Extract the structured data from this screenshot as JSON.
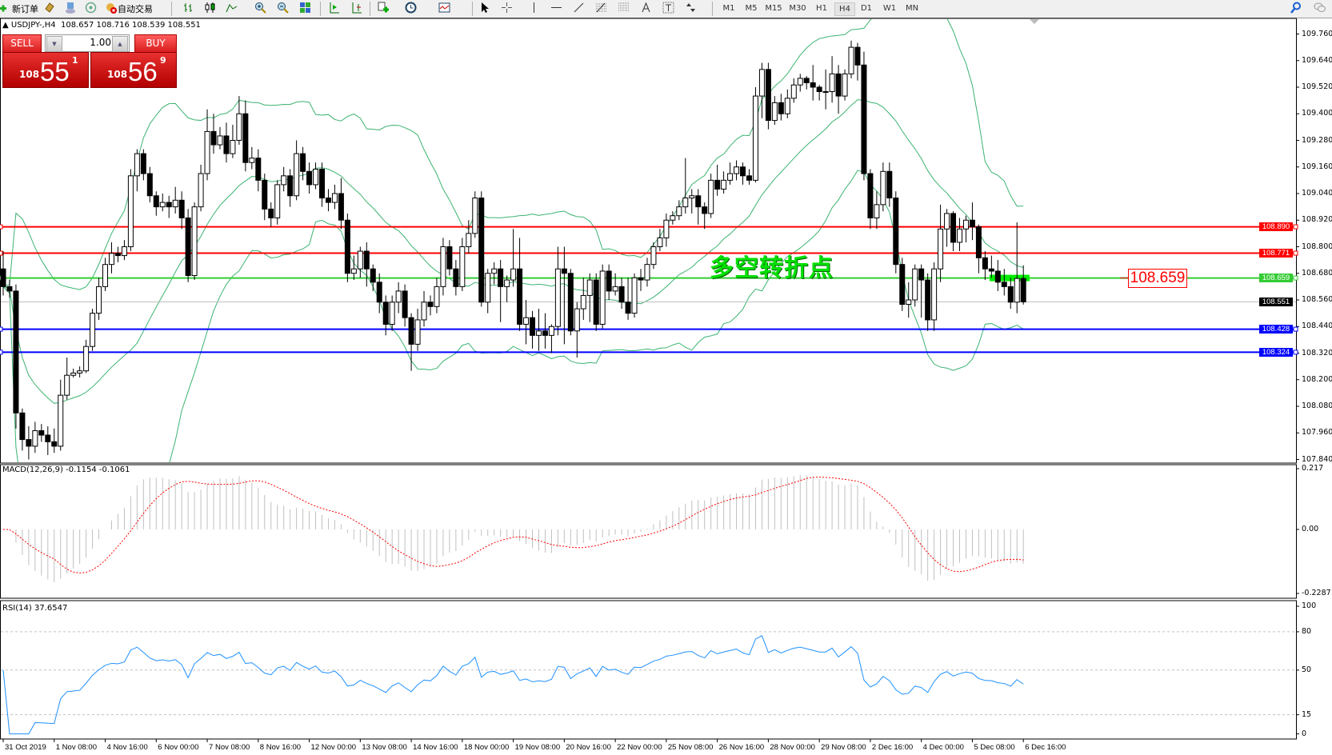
{
  "toolbar": {
    "new_order": "新订单",
    "auto_trading": "自动交易",
    "icons": [
      "new-order-icon",
      "navigator-icon",
      "market-watch-icon",
      "signals-icon",
      "auto-trading-icon",
      "bar-chart-icon",
      "candlestick-icon",
      "line-chart-icon",
      "zoom-in-icon",
      "zoom-out-icon",
      "tile-windows-icon",
      "auto-scroll-icon",
      "chart-shift-icon",
      "indicators-icon",
      "periods-icon",
      "templates-icon",
      "cursor-icon",
      "crosshair-icon",
      "vertical-line-icon",
      "horizontal-line-icon",
      "trendline-icon",
      "fibonacci-icon",
      "fibo-fan-icon",
      "text-icon",
      "text-label-icon",
      "arrows-icon",
      "search-icon",
      "chat-icon"
    ],
    "timeframes": [
      "M1",
      "M5",
      "M15",
      "M30",
      "H1",
      "H4",
      "D1",
      "W1",
      "MN"
    ],
    "active_timeframe": "H4"
  },
  "chart": {
    "header": "USDJPY-,H4  108.657 108.716 108.539 108.551",
    "annotation": "多空转折点",
    "annotation_color": "#00e000",
    "price_label": "108.659",
    "price_ticks": [
      "109.760",
      "109.640",
      "109.520",
      "109.400",
      "109.280",
      "109.160",
      "109.040",
      "108.920",
      "108.800",
      "108.680",
      "108.560",
      "108.440",
      "108.320",
      "108.200",
      "108.080",
      "107.960",
      "107.840"
    ],
    "levels": [
      {
        "price": 108.89,
        "label": "108.890",
        "color": "#ff0000"
      },
      {
        "price": 108.771,
        "label": "108.771",
        "color": "#ff0000"
      },
      {
        "price": 108.659,
        "label": "108.659",
        "color": "#33cc33"
      },
      {
        "price": 108.551,
        "label": "108.551",
        "color": "#000000",
        "line_color": "#c0c0c0"
      },
      {
        "price": 108.428,
        "label": "108.428",
        "color": "#0000ff"
      },
      {
        "price": 108.324,
        "label": "108.324",
        "color": "#0000ff"
      }
    ]
  },
  "trade_panel": {
    "sell_label": "SELL",
    "buy_label": "BUY",
    "lot": "1.00",
    "sell_price": {
      "small": "108",
      "big": "55",
      "tiny": "1"
    },
    "buy_price": {
      "small": "108",
      "big": "56",
      "tiny": "9"
    }
  },
  "macd": {
    "label": "MACD(12,26,9) -0.1154 -0.1061",
    "ticks": [
      "0.217",
      "0.00",
      "-0.2287"
    ],
    "range": [
      -0.2287,
      0.217
    ]
  },
  "rsi": {
    "label": "RSI(14) 37.6547",
    "ticks": [
      "100",
      "80",
      "50",
      "15",
      "0"
    ],
    "levels": [
      80,
      50,
      15
    ]
  },
  "time_labels": [
    "31 Oct 2019",
    "1 Nov 08:00",
    "4 Nov 16:00",
    "6 Nov 00:00",
    "7 Nov 08:00",
    "8 Nov 16:00",
    "12 Nov 00:00",
    "13 Nov 08:00",
    "14 Nov 16:00",
    "18 Nov 00:00",
    "19 Nov 08:00",
    "20 Nov 16:00",
    "22 Nov 00:00",
    "25 Nov 08:00",
    "26 Nov 16:00",
    "28 Nov 00:00",
    "29 Nov 08:00",
    "2 Dec 16:00",
    "4 Dec 00:00",
    "5 Dec 08:00",
    "6 Dec 16:00"
  ],
  "chart_data": {
    "type": "candlestick",
    "symbol": "USDJPY",
    "timeframe": "H4",
    "ylim": [
      107.84,
      109.76
    ],
    "first_open": 108.7,
    "close": [
      108.62,
      108.6,
      108.05,
      107.93,
      107.9,
      107.97,
      107.95,
      107.92,
      107.9,
      108.13,
      108.22,
      108.23,
      108.24,
      108.35,
      108.5,
      108.62,
      108.72,
      108.77,
      108.76,
      108.8,
      109.12,
      109.22,
      109.13,
      109.03,
      108.98,
      109.0,
      108.98,
      109.01,
      108.93,
      108.67,
      108.98,
      109.13,
      109.32,
      109.26,
      109.3,
      109.22,
      109.28,
      109.4,
      109.18,
      109.2,
      109.1,
      108.97,
      108.93,
      109.08,
      109.12,
      109.03,
      109.22,
      109.14,
      109.08,
      109.15,
      109.02,
      109.0,
      109.04,
      108.92,
      108.68,
      108.7,
      108.78,
      108.7,
      108.64,
      108.55,
      108.45,
      108.55,
      108.6,
      108.48,
      108.36,
      108.47,
      108.55,
      108.53,
      108.62,
      108.8,
      108.7,
      108.62,
      108.8,
      108.86,
      109.02,
      108.55,
      108.68,
      108.7,
      108.62,
      108.65,
      108.7,
      108.45,
      108.48,
      108.4,
      108.42,
      108.4,
      108.44,
      108.7,
      108.68,
      108.42,
      108.52,
      108.58,
      108.65,
      108.45,
      108.69,
      108.6,
      108.62,
      108.55,
      108.5,
      108.66,
      108.65,
      108.72,
      108.8,
      108.84,
      108.92,
      108.94,
      108.98,
      109.02,
      109.03,
      108.98,
      108.95,
      109.1,
      109.06,
      109.1,
      109.13,
      109.16,
      109.12,
      109.1,
      109.48,
      109.6,
      109.37,
      109.45,
      109.4,
      109.47,
      109.53,
      109.56,
      109.54,
      109.52,
      109.5,
      109.5,
      109.58,
      109.48,
      109.58,
      109.7,
      109.62,
      109.13,
      108.93,
      108.99,
      109.14,
      109.02,
      108.72,
      108.54,
      108.56,
      108.7,
      108.65,
      108.47,
      108.7,
      108.88,
      108.95,
      108.82,
      108.88,
      108.92,
      108.89,
      108.75,
      108.7,
      108.69,
      108.64,
      108.62,
      108.55,
      108.657,
      108.551
    ],
    "high": [
      108.78,
      108.65,
      108.63,
      108.07,
      107.99,
      108.01,
      108.0,
      107.99,
      107.98,
      108.2,
      108.3,
      108.25,
      108.26,
      108.38,
      108.52,
      108.66,
      108.75,
      108.82,
      108.8,
      108.83,
      109.15,
      109.24,
      109.24,
      109.16,
      109.05,
      109.04,
      109.03,
      109.07,
      109.05,
      108.97,
      109.0,
      109.17,
      109.42,
      109.4,
      109.34,
      109.36,
      109.35,
      109.48,
      109.46,
      109.25,
      109.24,
      109.13,
      109.0,
      109.1,
      109.16,
      109.15,
      109.28,
      109.25,
      109.18,
      109.18,
      109.18,
      109.06,
      109.08,
      109.11,
      108.95,
      108.76,
      108.8,
      108.82,
      108.72,
      108.68,
      108.58,
      108.58,
      108.64,
      108.63,
      108.5,
      108.52,
      108.6,
      108.58,
      108.66,
      108.84,
      108.83,
      108.74,
      108.84,
      108.92,
      109.05,
      109.05,
      108.7,
      108.73,
      108.74,
      108.67,
      108.88,
      108.84,
      108.56,
      108.51,
      108.52,
      108.5,
      108.45,
      108.8,
      108.8,
      108.7,
      108.55,
      108.66,
      108.68,
      108.68,
      108.72,
      108.72,
      108.68,
      108.66,
      108.66,
      108.68,
      108.7,
      108.75,
      108.82,
      108.88,
      108.95,
      108.96,
      109.01,
      109.2,
      109.06,
      109.06,
      109.0,
      109.13,
      109.17,
      109.14,
      109.18,
      109.19,
      109.18,
      109.15,
      109.52,
      109.63,
      109.63,
      109.48,
      109.49,
      109.51,
      109.56,
      109.58,
      109.57,
      109.62,
      109.53,
      109.6,
      109.66,
      109.62,
      109.6,
      109.73,
      109.72,
      109.68,
      109.15,
      109.05,
      109.18,
      109.18,
      109.05,
      108.75,
      108.64,
      108.72,
      108.72,
      108.68,
      108.73,
      108.99,
      108.97,
      108.96,
      108.93,
      108.94,
      109.0,
      108.9,
      108.78,
      108.76,
      108.74,
      108.7,
      108.66,
      108.91,
      108.716
    ],
    "low": [
      108.58,
      108.57,
      107.98,
      107.88,
      107.84,
      107.87,
      107.92,
      107.86,
      107.87,
      107.88,
      108.11,
      108.21,
      108.21,
      108.23,
      108.33,
      108.47,
      108.6,
      108.68,
      108.73,
      108.74,
      108.78,
      109.05,
      109.1,
      109.0,
      108.94,
      108.96,
      108.93,
      108.95,
      108.88,
      108.64,
      108.65,
      108.96,
      109.1,
      109.22,
      109.24,
      109.18,
      109.2,
      109.26,
      109.14,
      109.15,
      109.05,
      108.92,
      108.89,
      108.9,
      109.05,
      108.98,
      109.01,
      109.1,
      109.04,
      109.06,
      108.98,
      108.96,
      108.97,
      108.88,
      108.64,
      108.65,
      108.66,
      108.62,
      108.6,
      108.5,
      108.4,
      108.42,
      108.5,
      108.44,
      108.24,
      108.33,
      108.44,
      108.49,
      108.5,
      108.58,
      108.67,
      108.58,
      108.6,
      108.77,
      108.84,
      108.53,
      108.5,
      108.63,
      108.46,
      108.55,
      108.62,
      108.42,
      108.36,
      108.34,
      108.33,
      108.34,
      108.32,
      108.4,
      108.36,
      108.4,
      108.3,
      108.47,
      108.46,
      108.42,
      108.43,
      108.56,
      108.58,
      108.52,
      108.47,
      108.48,
      108.6,
      108.62,
      108.7,
      108.78,
      108.8,
      108.9,
      108.92,
      108.95,
      108.95,
      108.9,
      108.88,
      108.93,
      109.03,
      109.04,
      109.08,
      109.1,
      109.08,
      109.08,
      109.09,
      109.38,
      109.33,
      109.35,
      109.37,
      109.38,
      109.45,
      109.5,
      109.51,
      109.46,
      109.46,
      109.42,
      109.45,
      109.4,
      109.46,
      109.56,
      109.55,
      109.1,
      108.88,
      108.88,
      108.96,
      108.98,
      108.68,
      108.51,
      108.48,
      108.53,
      108.48,
      108.42,
      108.42,
      108.64,
      108.8,
      108.78,
      108.78,
      108.82,
      108.83,
      108.68,
      108.65,
      108.66,
      108.6,
      108.58,
      108.52,
      108.5,
      108.539
    ]
  }
}
